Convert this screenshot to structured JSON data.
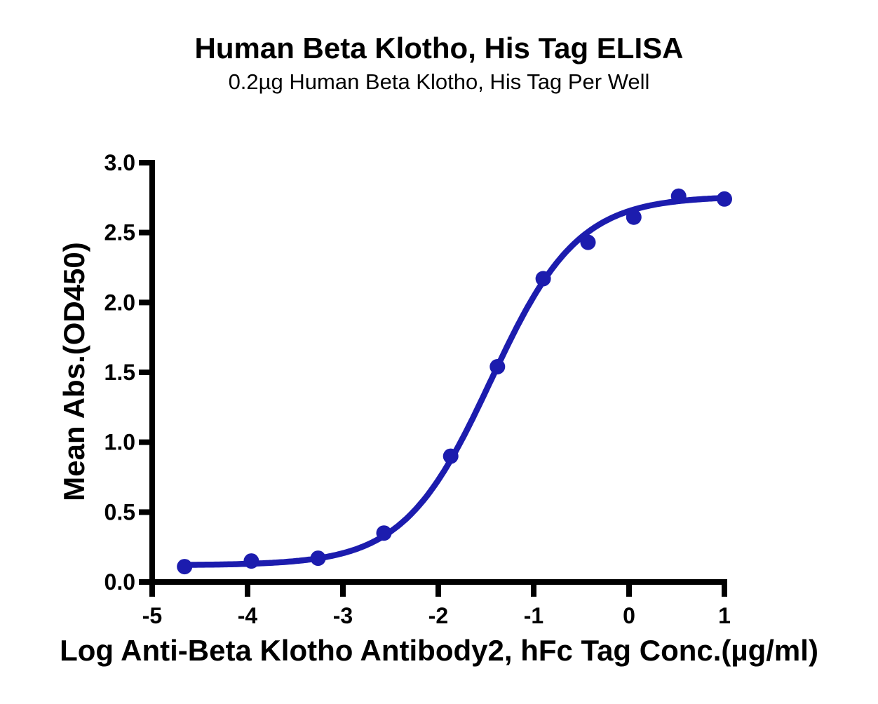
{
  "chart_data": {
    "type": "line",
    "title": "Human Beta Klotho, His Tag ELISA",
    "subtitle": "0.2µg Human Beta Klotho, His Tag Per Well",
    "xlabel": "Log Anti-Beta Klotho Antibody2, hFc Tag Conc.(µg/ml)",
    "ylabel": "Mean Abs.(OD450)",
    "xlim": [
      -5,
      1
    ],
    "ylim": [
      0,
      3.0
    ],
    "grid": false,
    "legend": "none",
    "xticks": {
      "values": [
        -5,
        -4,
        -3,
        -2,
        -1,
        0,
        1
      ],
      "labels": [
        "-5",
        "-4",
        "-3",
        "-2",
        "-1",
        "0",
        "1"
      ]
    },
    "yticks": {
      "values": [
        0,
        0.5,
        1.0,
        1.5,
        2.0,
        2.5,
        3.0
      ],
      "labels": [
        "0.0",
        "0.5",
        "1.0",
        "1.5",
        "2.0",
        "2.5",
        "3.0"
      ]
    },
    "series": [
      {
        "marker": "circle",
        "x": [
          -4.66,
          -3.96,
          -3.26,
          -2.57,
          -1.87,
          -1.38,
          -0.9,
          -0.43,
          0.05,
          0.52,
          1.0
        ],
        "y": [
          0.11,
          0.15,
          0.17,
          0.35,
          0.9,
          1.54,
          2.17,
          2.43,
          2.61,
          2.76,
          2.74
        ]
      }
    ],
    "fit_curve": {
      "model": "4PL",
      "bottom": 0.12,
      "top": 2.76,
      "logEC50": -1.45,
      "hill": 0.95
    },
    "colors": {
      "curve": "#1c1cae",
      "points": "#1c1cae",
      "axis": "#000000",
      "text": "#000000"
    }
  }
}
